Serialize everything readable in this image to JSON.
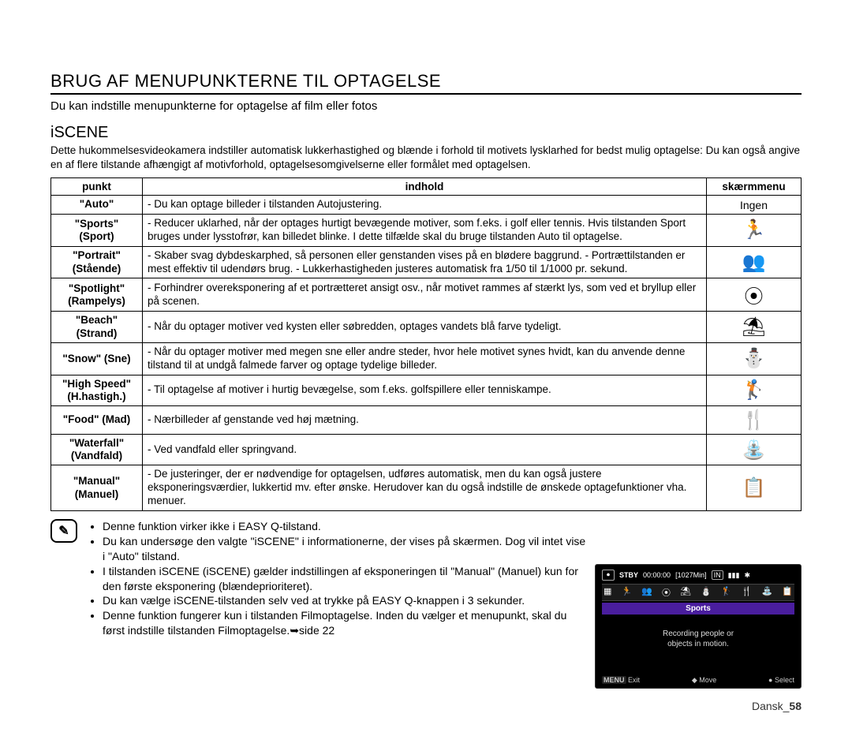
{
  "title": "BRUG AF MENUPUNKTERNE TIL OPTAGELSE",
  "intro": "Du kan indstille menupunkterne for optagelse af film eller fotos",
  "section": {
    "heading": "iSCENE",
    "desc": "Dette hukommelsesvideokamera indstiller automatisk lukkerhastighed og blænde i forhold til motivets lysklarhed for bedst mulig optagelse: Du kan også angive en af flere tilstande afhængigt af motivforhold, optagelsesomgivelserne eller formålet med optagelsen."
  },
  "table": {
    "headers": {
      "punkt": "punkt",
      "indhold": "indhold",
      "skaerm": "skærmmenu"
    },
    "rows": [
      {
        "label": "\"Auto\"",
        "sub": "",
        "content": "- Du kan optage billeder i tilstanden Autojustering.",
        "icon": "Ingen",
        "icon_is_text": true
      },
      {
        "label": "\"Sports\"",
        "sub": "(Sport)",
        "content": "- Reducer uklarhed, når der optages hurtigt bevægende motiver, som f.eks. i golf eller tennis. Hvis tilstanden Sport bruges under lysstofrør, kan billedet blinke. I dette tilfælde skal du bruge tilstanden Auto til optagelse.",
        "icon": "🏃"
      },
      {
        "label": "\"Portrait\"",
        "sub": "(Stående)",
        "content": "- Skaber svag dybdeskarphed, så personen eller genstanden vises på en blødere baggrund.\n- Portrættilstanden er mest effektiv til udendørs brug.\n- Lukkerhastigheden justeres automatisk fra 1/50 til 1/1000 pr. sekund.",
        "icon": "👥"
      },
      {
        "label": "\"Spotlight\"",
        "sub": "(Rampelys)",
        "content": "- Forhindrer overeksponering af et portrætteret ansigt osv., når motivet rammes af stærkt lys, som ved et bryllup eller på scenen.",
        "icon": "⦿"
      },
      {
        "label": "\"Beach\"",
        "sub": "(Strand)",
        "content": "- Når du optager motiver ved kysten eller søbredden, optages vandets blå farve tydeligt.",
        "icon": "⛱"
      },
      {
        "label": "\"Snow\" (Sne)",
        "sub": "",
        "content": "- Når du optager motiver med megen sne eller andre steder, hvor hele motivet synes hvidt, kan du anvende denne tilstand til at undgå falmede farver og optage tydelige billeder.",
        "icon": "⛄"
      },
      {
        "label": "\"High Speed\"",
        "sub": "(H.hastigh.)",
        "content": "- Til optagelse af motiver i hurtig bevægelse, som f.eks. golfspillere eller tenniskampe.",
        "icon": "🏌"
      },
      {
        "label": "\"Food\" (Mad)",
        "sub": "",
        "content": "- Nærbilleder af genstande ved høj mætning.",
        "icon": "🍴"
      },
      {
        "label": "\"Waterfall\"",
        "sub": "(Vandfald)",
        "content": "- Ved vandfald eller springvand.",
        "icon": "⛲"
      },
      {
        "label": "\"Manual\"",
        "sub": "(Manuel)",
        "content": "- De justeringer, der er nødvendige for optagelsen, udføres automatisk, men du kan også justere eksponeringsværdier, lukkertid mv. efter ønske. Herudover kan du også indstille de ønskede optagefunktioner vha. menuer.",
        "icon": "📋"
      }
    ]
  },
  "notes": {
    "mark": "✎",
    "items": [
      "Denne funktion virker ikke i EASY Q-tilstand.",
      "Du kan undersøge den valgte \"iSCENE\" i informationerne, der vises på skærmen. Dog vil intet vise i \"Auto\" tilstand.",
      "I tilstanden iSCENE (iSCENE) gælder indstillingen af eksponeringen til \"Manual\" (Manuel) kun for den første eksponering (blændeprioriteret).",
      "Du kan vælge iSCENE-tilstanden selv ved at trykke på EASY Q-knappen i 3 sekunder.",
      "Denne funktion fungerer kun i tilstanden Filmoptagelse. Inden du vælger et menupunkt, skal du først indstille tilstanden Filmoptagelse.➥side 22"
    ]
  },
  "preview": {
    "stby": "STBY",
    "time": "00:00:00",
    "remain": "[1027Min]",
    "in": "IN",
    "mode_label": "Sports",
    "mode_desc1": "Recording people or",
    "mode_desc2": "objects in motion.",
    "menu": "MENU",
    "exit": "Exit",
    "move": "Move",
    "select": "Select",
    "icons": [
      "▦",
      "🏃",
      "👥",
      "⦿",
      "⛱",
      "⛄",
      "🏌",
      "🍴",
      "⛲",
      "📋"
    ]
  },
  "page": {
    "lang": "Dansk_",
    "num": "58"
  }
}
